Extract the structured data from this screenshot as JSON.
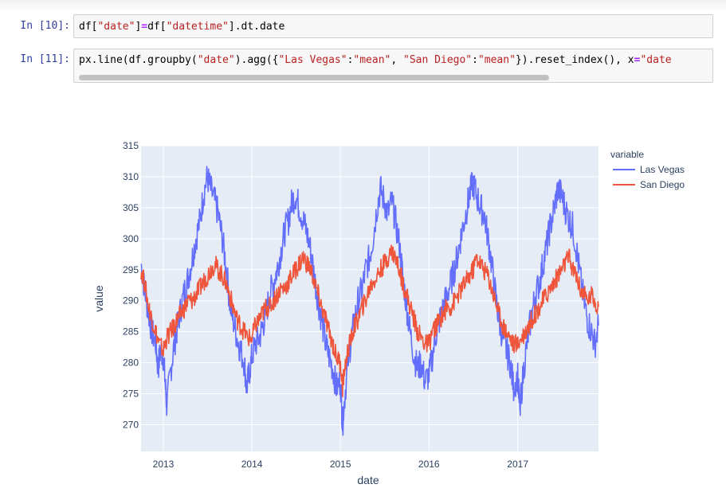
{
  "cells": [
    {
      "prompt": "In [10]:",
      "tokens": [
        {
          "t": "df[",
          "c": "n"
        },
        {
          "t": "\"date\"",
          "c": "s"
        },
        {
          "t": "]",
          "c": "n"
        },
        {
          "t": "=",
          "c": "o"
        },
        {
          "t": "df[",
          "c": "n"
        },
        {
          "t": "\"datetime\"",
          "c": "s"
        },
        {
          "t": "].dt.date",
          "c": "n"
        }
      ]
    },
    {
      "prompt": "In [11]:",
      "tokens": [
        {
          "t": "px.line(df.groupby(",
          "c": "n"
        },
        {
          "t": "\"date\"",
          "c": "s"
        },
        {
          "t": ").agg({",
          "c": "n"
        },
        {
          "t": "\"Las Vegas\"",
          "c": "s"
        },
        {
          "t": ":",
          "c": "n"
        },
        {
          "t": "\"mean\"",
          "c": "s"
        },
        {
          "t": ", ",
          "c": "n"
        },
        {
          "t": "\"San Diego\"",
          "c": "s"
        },
        {
          "t": ":",
          "c": "n"
        },
        {
          "t": "\"mean\"",
          "c": "s"
        },
        {
          "t": "}).reset_index(), x",
          "c": "n"
        },
        {
          "t": "=",
          "c": "o"
        },
        {
          "t": "\"date",
          "c": "s"
        }
      ]
    }
  ],
  "chart_data": {
    "type": "line",
    "xlabel": "date",
    "ylabel": "value",
    "legend_title": "variable",
    "legend_position": "top-right",
    "grid": true,
    "x_range": [
      "2012-10-01",
      "2017-11-30"
    ],
    "x_ticks": [
      "2013",
      "2014",
      "2015",
      "2016",
      "2017"
    ],
    "y_range": [
      265.7,
      315
    ],
    "y_ticks": [
      270,
      275,
      280,
      285,
      290,
      295,
      300,
      305,
      310,
      315
    ],
    "colors": {
      "plot_bg": "#e5ecf6",
      "Las Vegas": "#636efa",
      "San Diego": "#ef553b"
    },
    "series": [
      {
        "name": "Las Vegas",
        "points": [
          [
            "2012-10-01",
            296
          ],
          [
            "2012-10-15",
            292
          ],
          [
            "2012-11-01",
            288
          ],
          [
            "2012-11-15",
            285
          ],
          [
            "2012-12-01",
            283
          ],
          [
            "2012-12-10",
            279
          ],
          [
            "2012-12-20",
            282
          ],
          [
            "2013-01-01",
            281
          ],
          [
            "2013-01-10",
            276
          ],
          [
            "2013-01-15",
            273
          ],
          [
            "2013-02-01",
            279
          ],
          [
            "2013-02-15",
            283
          ],
          [
            "2013-03-01",
            286
          ],
          [
            "2013-03-15",
            289
          ],
          [
            "2013-04-01",
            292
          ],
          [
            "2013-04-15",
            294
          ],
          [
            "2013-05-01",
            297
          ],
          [
            "2013-05-15",
            300
          ],
          [
            "2013-06-01",
            303
          ],
          [
            "2013-06-15",
            307
          ],
          [
            "2013-07-01",
            310
          ],
          [
            "2013-07-15",
            308
          ],
          [
            "2013-08-01",
            306
          ],
          [
            "2013-08-15",
            304
          ],
          [
            "2013-09-01",
            300
          ],
          [
            "2013-09-15",
            296
          ],
          [
            "2013-10-01",
            290
          ],
          [
            "2013-10-15",
            287
          ],
          [
            "2013-11-01",
            284
          ],
          [
            "2013-11-15",
            282
          ],
          [
            "2013-12-01",
            280
          ],
          [
            "2013-12-10",
            276
          ],
          [
            "2013-12-20",
            278
          ],
          [
            "2014-01-01",
            281
          ],
          [
            "2014-01-15",
            283
          ],
          [
            "2014-02-01",
            284
          ],
          [
            "2014-02-15",
            286
          ],
          [
            "2014-03-01",
            288
          ],
          [
            "2014-03-15",
            291
          ],
          [
            "2014-04-01",
            293
          ],
          [
            "2014-04-15",
            295
          ],
          [
            "2014-05-01",
            298
          ],
          [
            "2014-05-15",
            301
          ],
          [
            "2014-06-01",
            303
          ],
          [
            "2014-06-15",
            306
          ],
          [
            "2014-07-01",
            307
          ],
          [
            "2014-07-15",
            305
          ],
          [
            "2014-08-01",
            303
          ],
          [
            "2014-08-15",
            301
          ],
          [
            "2014-09-01",
            298
          ],
          [
            "2014-09-15",
            294
          ],
          [
            "2014-10-01",
            290
          ],
          [
            "2014-10-15",
            287
          ],
          [
            "2014-11-01",
            283
          ],
          [
            "2014-11-15",
            281
          ],
          [
            "2014-12-01",
            279
          ],
          [
            "2014-12-15",
            276
          ],
          [
            "2015-01-01",
            277
          ],
          [
            "2015-01-10",
            270
          ],
          [
            "2015-01-15",
            273
          ],
          [
            "2015-02-01",
            280
          ],
          [
            "2015-02-15",
            284
          ],
          [
            "2015-03-01",
            287
          ],
          [
            "2015-03-15",
            290
          ],
          [
            "2015-04-01",
            292
          ],
          [
            "2015-04-15",
            295
          ],
          [
            "2015-05-01",
            297
          ],
          [
            "2015-05-15",
            300
          ],
          [
            "2015-06-01",
            305
          ],
          [
            "2015-06-15",
            308
          ],
          [
            "2015-07-01",
            306
          ],
          [
            "2015-07-15",
            304
          ],
          [
            "2015-08-01",
            306
          ],
          [
            "2015-08-15",
            303
          ],
          [
            "2015-09-01",
            299
          ],
          [
            "2015-09-15",
            294
          ],
          [
            "2015-10-01",
            289
          ],
          [
            "2015-10-15",
            285
          ],
          [
            "2015-11-01",
            281
          ],
          [
            "2015-11-15",
            279
          ],
          [
            "2015-12-01",
            280
          ],
          [
            "2015-12-15",
            277
          ],
          [
            "2016-01-01",
            278
          ],
          [
            "2016-01-15",
            281
          ],
          [
            "2016-02-01",
            285
          ],
          [
            "2016-02-15",
            287
          ],
          [
            "2016-03-01",
            289
          ],
          [
            "2016-03-15",
            291
          ],
          [
            "2016-04-01",
            293
          ],
          [
            "2016-04-15",
            295
          ],
          [
            "2016-05-01",
            298
          ],
          [
            "2016-05-15",
            301
          ],
          [
            "2016-06-01",
            304
          ],
          [
            "2016-06-15",
            307
          ],
          [
            "2016-07-01",
            309
          ],
          [
            "2016-07-15",
            307
          ],
          [
            "2016-08-01",
            305
          ],
          [
            "2016-08-15",
            304
          ],
          [
            "2016-09-01",
            300
          ],
          [
            "2016-09-15",
            296
          ],
          [
            "2016-10-01",
            291
          ],
          [
            "2016-10-15",
            287
          ],
          [
            "2016-11-01",
            284
          ],
          [
            "2016-11-15",
            282
          ],
          [
            "2016-12-01",
            280
          ],
          [
            "2016-12-15",
            276
          ],
          [
            "2017-01-01",
            278
          ],
          [
            "2017-01-10",
            272
          ],
          [
            "2017-01-15",
            275
          ],
          [
            "2017-02-01",
            281
          ],
          [
            "2017-02-15",
            285
          ],
          [
            "2017-03-01",
            288
          ],
          [
            "2017-03-15",
            291
          ],
          [
            "2017-04-01",
            293
          ],
          [
            "2017-04-15",
            296
          ],
          [
            "2017-05-01",
            299
          ],
          [
            "2017-05-15",
            302
          ],
          [
            "2017-06-01",
            305
          ],
          [
            "2017-06-15",
            308
          ],
          [
            "2017-07-01",
            307
          ],
          [
            "2017-07-15",
            305
          ],
          [
            "2017-08-01",
            303
          ],
          [
            "2017-08-15",
            302
          ],
          [
            "2017-09-01",
            298
          ],
          [
            "2017-09-15",
            294
          ],
          [
            "2017-10-01",
            290
          ],
          [
            "2017-10-15",
            287
          ],
          [
            "2017-11-01",
            285
          ],
          [
            "2017-11-15",
            283
          ],
          [
            "2017-11-30",
            286
          ]
        ]
      },
      {
        "name": "San Diego",
        "points": [
          [
            "2012-10-01",
            295
          ],
          [
            "2012-10-15",
            293
          ],
          [
            "2012-11-01",
            289
          ],
          [
            "2012-11-15",
            287
          ],
          [
            "2012-12-01",
            285
          ],
          [
            "2012-12-15",
            283
          ],
          [
            "2013-01-01",
            282
          ],
          [
            "2013-01-15",
            284
          ],
          [
            "2013-02-01",
            285
          ],
          [
            "2013-02-15",
            286
          ],
          [
            "2013-03-01",
            287
          ],
          [
            "2013-03-15",
            288
          ],
          [
            "2013-04-01",
            289
          ],
          [
            "2013-04-15",
            290
          ],
          [
            "2013-05-01",
            290
          ],
          [
            "2013-05-15",
            291
          ],
          [
            "2013-06-01",
            292
          ],
          [
            "2013-06-15",
            293
          ],
          [
            "2013-07-01",
            294
          ],
          [
            "2013-07-15",
            295
          ],
          [
            "2013-08-01",
            296
          ],
          [
            "2013-08-15",
            295
          ],
          [
            "2013-09-01",
            294
          ],
          [
            "2013-09-15",
            293
          ],
          [
            "2013-10-01",
            291
          ],
          [
            "2013-10-15",
            289
          ],
          [
            "2013-11-01",
            287
          ],
          [
            "2013-11-15",
            286
          ],
          [
            "2013-12-01",
            285
          ],
          [
            "2013-12-15",
            284
          ],
          [
            "2014-01-01",
            284
          ],
          [
            "2014-01-15",
            286
          ],
          [
            "2014-02-01",
            287
          ],
          [
            "2014-02-15",
            288
          ],
          [
            "2014-03-01",
            289
          ],
          [
            "2014-03-15",
            289
          ],
          [
            "2014-04-01",
            290
          ],
          [
            "2014-04-15",
            291
          ],
          [
            "2014-05-01",
            292
          ],
          [
            "2014-05-15",
            292
          ],
          [
            "2014-06-01",
            293
          ],
          [
            "2014-06-15",
            294
          ],
          [
            "2014-07-01",
            295
          ],
          [
            "2014-07-15",
            296
          ],
          [
            "2014-08-01",
            297
          ],
          [
            "2014-08-15",
            296
          ],
          [
            "2014-09-01",
            295
          ],
          [
            "2014-09-15",
            293
          ],
          [
            "2014-10-01",
            291
          ],
          [
            "2014-10-15",
            289
          ],
          [
            "2014-11-01",
            287
          ],
          [
            "2014-11-15",
            285
          ],
          [
            "2014-12-01",
            283
          ],
          [
            "2014-12-15",
            281
          ],
          [
            "2015-01-01",
            280
          ],
          [
            "2015-01-10",
            276
          ],
          [
            "2015-01-15",
            278
          ],
          [
            "2015-02-01",
            282
          ],
          [
            "2015-02-15",
            284
          ],
          [
            "2015-03-01",
            286
          ],
          [
            "2015-03-15",
            287
          ],
          [
            "2015-04-01",
            289
          ],
          [
            "2015-04-15",
            290
          ],
          [
            "2015-05-01",
            292
          ],
          [
            "2015-05-15",
            293
          ],
          [
            "2015-06-01",
            294
          ],
          [
            "2015-06-15",
            295
          ],
          [
            "2015-07-01",
            296
          ],
          [
            "2015-07-15",
            297
          ],
          [
            "2015-08-01",
            298
          ],
          [
            "2015-08-15",
            297
          ],
          [
            "2015-09-01",
            295
          ],
          [
            "2015-09-15",
            293
          ],
          [
            "2015-10-01",
            291
          ],
          [
            "2015-10-15",
            289
          ],
          [
            "2015-11-01",
            287
          ],
          [
            "2015-11-15",
            285
          ],
          [
            "2015-12-01",
            284
          ],
          [
            "2015-12-15",
            283
          ],
          [
            "2016-01-01",
            283
          ],
          [
            "2016-01-15",
            285
          ],
          [
            "2016-02-01",
            286
          ],
          [
            "2016-02-15",
            287
          ],
          [
            "2016-03-01",
            288
          ],
          [
            "2016-03-15",
            289
          ],
          [
            "2016-04-01",
            289
          ],
          [
            "2016-04-15",
            290
          ],
          [
            "2016-05-01",
            291
          ],
          [
            "2016-05-15",
            292
          ],
          [
            "2016-06-01",
            293
          ],
          [
            "2016-06-15",
            294
          ],
          [
            "2016-07-01",
            295
          ],
          [
            "2016-07-15",
            297
          ],
          [
            "2016-08-01",
            296
          ],
          [
            "2016-08-15",
            295
          ],
          [
            "2016-09-01",
            294
          ],
          [
            "2016-09-15",
            292
          ],
          [
            "2016-10-01",
            290
          ],
          [
            "2016-10-15",
            288
          ],
          [
            "2016-11-01",
            286
          ],
          [
            "2016-11-15",
            285
          ],
          [
            "2016-12-01",
            284
          ],
          [
            "2016-12-15",
            283
          ],
          [
            "2017-01-01",
            283
          ],
          [
            "2017-01-15",
            284
          ],
          [
            "2017-02-01",
            285
          ],
          [
            "2017-02-15",
            286
          ],
          [
            "2017-03-01",
            287
          ],
          [
            "2017-03-15",
            288
          ],
          [
            "2017-04-01",
            289
          ],
          [
            "2017-04-15",
            290
          ],
          [
            "2017-05-01",
            291
          ],
          [
            "2017-05-15",
            292
          ],
          [
            "2017-06-01",
            293
          ],
          [
            "2017-06-15",
            294
          ],
          [
            "2017-07-01",
            295
          ],
          [
            "2017-07-15",
            296
          ],
          [
            "2017-08-01",
            297
          ],
          [
            "2017-08-15",
            295
          ],
          [
            "2017-09-01",
            294
          ],
          [
            "2017-09-15",
            292
          ],
          [
            "2017-10-01",
            291
          ],
          [
            "2017-10-15",
            290
          ],
          [
            "2017-11-01",
            291
          ],
          [
            "2017-11-15",
            290
          ],
          [
            "2017-11-30",
            289
          ]
        ]
      }
    ]
  }
}
